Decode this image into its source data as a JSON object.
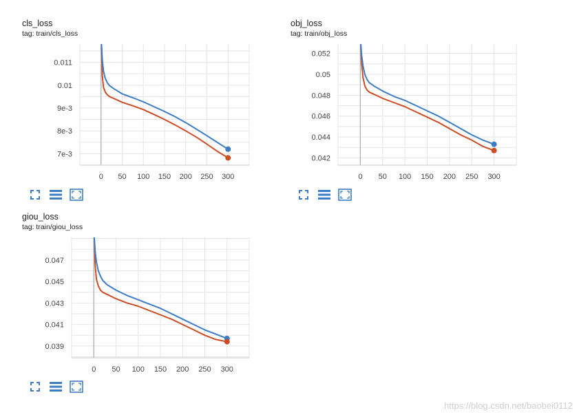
{
  "colors": {
    "blue": "#3b7cc4",
    "orange": "#cc4c24",
    "grid": "#e5e5e5",
    "axis": "#aaaaaa",
    "toolbar": "#3b7cc4"
  },
  "toolbar_icons": [
    "fit-to-data-icon",
    "toggle-log-scale-icon",
    "expand-chart-icon"
  ],
  "watermark": "https://blog.csdn.net/baobei0112",
  "charts": [
    {
      "title": "cls_loss",
      "tag": "tag: train/cls_loss",
      "chart_data": {
        "type": "line",
        "xlim": [
          -50,
          350
        ],
        "ylim": [
          0.0065,
          0.0118
        ],
        "xticks": [
          0,
          50,
          100,
          150,
          200,
          250,
          300
        ],
        "xtick_labels": [
          "0",
          "50",
          "100",
          "150",
          "200",
          "250",
          "300"
        ],
        "yticks": [
          0.007,
          0.008,
          0.009,
          0.01,
          0.011
        ],
        "ytick_labels": [
          "7e-3",
          "8e-3",
          "9e-3",
          "0.01",
          "0.011"
        ],
        "series": [
          {
            "color": "blue",
            "x": [
              1,
              3,
              6,
              10,
              15,
              20,
              30,
              50,
              75,
              100,
              125,
              150,
              175,
              200,
              225,
              250,
              275,
              300
            ],
            "y": [
              0.0118,
              0.0111,
              0.0106,
              0.0103,
              0.0101,
              0.00998,
              0.00985,
              0.00962,
              0.00945,
              0.00927,
              0.00906,
              0.00885,
              0.00862,
              0.00836,
              0.00808,
              0.00779,
              0.00749,
              0.0072
            ]
          },
          {
            "color": "orange",
            "x": [
              1,
              3,
              6,
              10,
              15,
              20,
              30,
              50,
              75,
              100,
              125,
              150,
              175,
              200,
              225,
              250,
              275,
              300
            ],
            "y": [
              0.0118,
              0.0104,
              0.0099,
              0.0097,
              0.00958,
              0.0095,
              0.00942,
              0.00925,
              0.0091,
              0.00893,
              0.00872,
              0.0085,
              0.00826,
              0.008,
              0.00773,
              0.00742,
              0.0071,
              0.00682
            ]
          }
        ]
      }
    },
    {
      "title": "obj_loss",
      "tag": "tag: train/obj_loss",
      "chart_data": {
        "type": "line",
        "xlim": [
          -50,
          350
        ],
        "ylim": [
          0.0413,
          0.0529
        ],
        "xticks": [
          0,
          50,
          100,
          150,
          200,
          250,
          300
        ],
        "xtick_labels": [
          "0",
          "50",
          "100",
          "150",
          "200",
          "250",
          "300"
        ],
        "yticks": [
          0.042,
          0.044,
          0.046,
          0.048,
          0.05,
          0.052
        ],
        "ytick_labels": [
          "0.042",
          "0.044",
          "0.046",
          "0.048",
          "0.05",
          "0.052"
        ],
        "series": [
          {
            "color": "blue",
            "x": [
              1,
              3,
              6,
              10,
              15,
              20,
              30,
              50,
              75,
              100,
              125,
              150,
              175,
              200,
              225,
              250,
              275,
              300
            ],
            "y": [
              0.0529,
              0.0518,
              0.0508,
              0.05,
              0.0495,
              0.0492,
              0.0489,
              0.0484,
              0.0479,
              0.0475,
              0.047,
              0.0465,
              0.046,
              0.0454,
              0.0448,
              0.0442,
              0.0437,
              0.0433
            ]
          },
          {
            "color": "orange",
            "x": [
              1,
              3,
              6,
              10,
              15,
              20,
              30,
              50,
              75,
              100,
              125,
              150,
              175,
              200,
              225,
              250,
              275,
              300
            ],
            "y": [
              0.0529,
              0.051,
              0.0497,
              0.0489,
              0.0485,
              0.0483,
              0.0481,
              0.0477,
              0.0473,
              0.0469,
              0.0464,
              0.0459,
              0.0454,
              0.0448,
              0.0442,
              0.0437,
              0.0431,
              0.0427
            ]
          }
        ]
      }
    },
    {
      "title": "giou_loss",
      "tag": "tag: train/giou_loss",
      "chart_data": {
        "type": "line",
        "xlim": [
          -50,
          350
        ],
        "ylim": [
          0.0379,
          0.0491
        ],
        "xticks": [
          0,
          50,
          100,
          150,
          200,
          250,
          300
        ],
        "xtick_labels": [
          "0",
          "50",
          "100",
          "150",
          "200",
          "250",
          "300"
        ],
        "yticks": [
          0.039,
          0.041,
          0.043,
          0.045,
          0.047
        ],
        "ytick_labels": [
          "0.039",
          "0.041",
          "0.043",
          "0.045",
          "0.047"
        ],
        "series": [
          {
            "color": "blue",
            "x": [
              1,
              3,
              6,
              10,
              15,
              20,
              30,
              50,
              75,
              100,
              125,
              150,
              175,
              200,
              225,
              250,
              275,
              300
            ],
            "y": [
              0.0491,
              0.0478,
              0.0468,
              0.046,
              0.0455,
              0.0451,
              0.0447,
              0.0442,
              0.0437,
              0.0433,
              0.0429,
              0.0425,
              0.042,
              0.0415,
              0.041,
              0.0405,
              0.0401,
              0.0397
            ]
          },
          {
            "color": "orange",
            "x": [
              1,
              3,
              6,
              10,
              15,
              20,
              30,
              50,
              75,
              100,
              125,
              150,
              175,
              200,
              225,
              250,
              275,
              300
            ],
            "y": [
              0.0491,
              0.0465,
              0.0452,
              0.0446,
              0.0442,
              0.044,
              0.0438,
              0.0434,
              0.043,
              0.0427,
              0.0423,
              0.0419,
              0.0415,
              0.041,
              0.0405,
              0.04,
              0.0396,
              0.0394
            ]
          }
        ]
      }
    }
  ]
}
